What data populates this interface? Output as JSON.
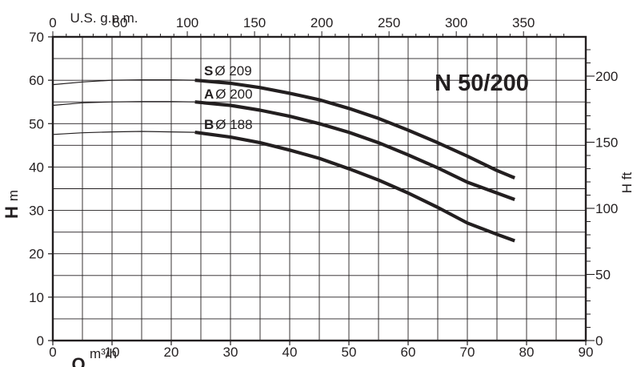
{
  "chart_data": {
    "type": "line",
    "title": "N 50/200",
    "x_axis": {
      "label_main": "Q",
      "label_unit": "m³/h",
      "range": [
        0,
        90
      ],
      "ticks": [
        "0",
        "10",
        "20",
        "30",
        "40",
        "50",
        "60",
        "70",
        "80",
        "90"
      ]
    },
    "x_axis_top": {
      "label": "U.S. g.p.m.",
      "range": [
        0,
        396.3
      ],
      "ticks": [
        "0",
        "50",
        "100",
        "150",
        "200",
        "250",
        "300",
        "350"
      ]
    },
    "y_axis": {
      "label_main": "H",
      "label_unit": "m",
      "range": [
        0,
        70
      ],
      "ticks": [
        "0",
        "10",
        "20",
        "30",
        "40",
        "50",
        "60",
        "70"
      ]
    },
    "y_axis_right": {
      "label": "H ft",
      "range": [
        0,
        229.7
      ],
      "ticks": [
        "0",
        "50",
        "100",
        "150",
        "200"
      ]
    },
    "grid": true,
    "series": [
      {
        "name": "S",
        "diameter": "Ø 209",
        "x": [
          0,
          5,
          10,
          15,
          20,
          24,
          30,
          35,
          40,
          45,
          50,
          55,
          60,
          65,
          70,
          75,
          78
        ],
        "y": [
          59,
          59.6,
          60,
          60.1,
          60.1,
          60,
          59.3,
          58.3,
          57,
          55.5,
          53.5,
          51.2,
          48.5,
          45.6,
          42.5,
          39.2,
          37.5
        ],
        "dashed_until": 24
      },
      {
        "name": "A",
        "diameter": "Ø 200",
        "x": [
          0,
          5,
          10,
          15,
          20,
          24,
          30,
          35,
          40,
          45,
          50,
          55,
          60,
          65,
          70,
          75,
          78
        ],
        "y": [
          54.2,
          54.8,
          55,
          55.1,
          55.1,
          55,
          54.2,
          53.1,
          51.7,
          50,
          48,
          45.6,
          42.8,
          39.8,
          36.5,
          34,
          32.5
        ],
        "dashed_until": 24
      },
      {
        "name": "B",
        "diameter": "Ø 188",
        "x": [
          0,
          5,
          10,
          15,
          20,
          24,
          30,
          35,
          40,
          45,
          50,
          55,
          60,
          65,
          70,
          75,
          78
        ],
        "y": [
          47.5,
          47.9,
          48.1,
          48.2,
          48.1,
          48,
          46.9,
          45.6,
          43.9,
          42,
          39.6,
          37,
          34,
          30.7,
          27.1,
          24.5,
          23
        ],
        "dashed_until": 24
      }
    ]
  }
}
